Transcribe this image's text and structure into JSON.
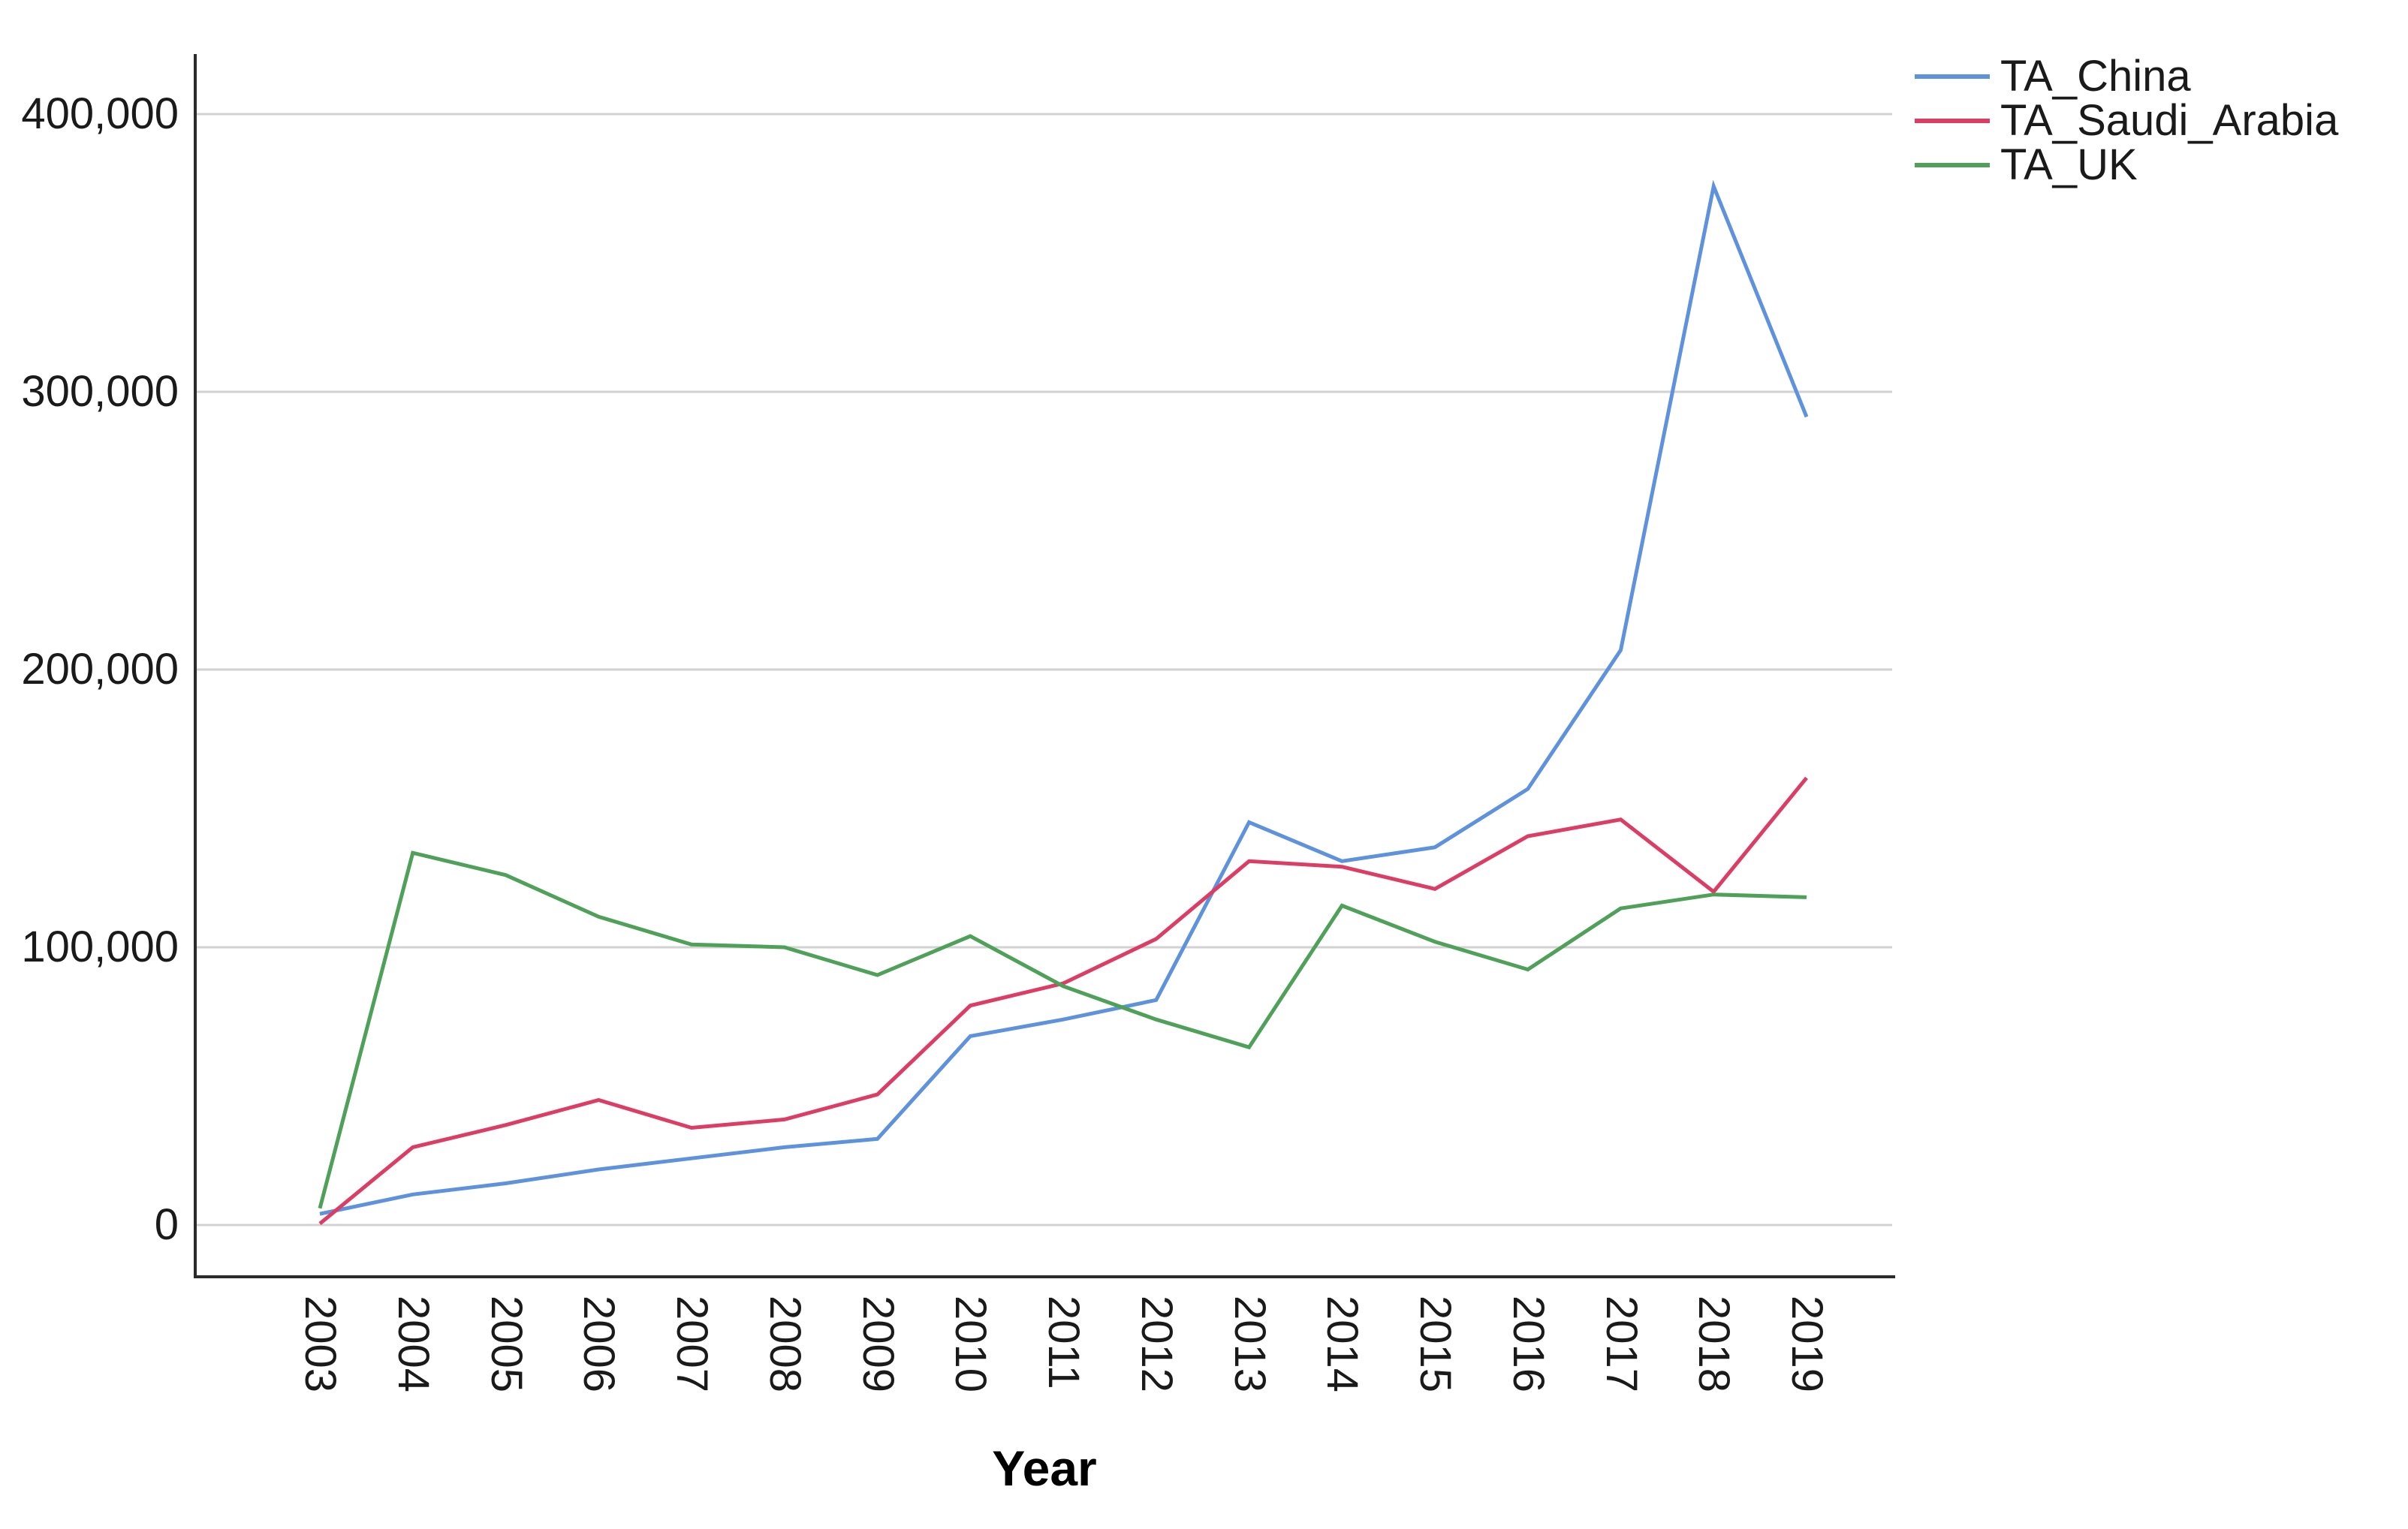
{
  "chart_data": {
    "type": "line",
    "title": "",
    "xlabel": "Year",
    "ylabel": "",
    "categories": [
      "2003",
      "2004",
      "2005",
      "2006",
      "2007",
      "2008",
      "2009",
      "2010",
      "2011",
      "2012",
      "2013",
      "2014",
      "2015",
      "2016",
      "2017",
      "2018",
      "2019"
    ],
    "y_tick_labels": [
      "0",
      "100,000",
      "200,000",
      "300,000",
      "400,000"
    ],
    "y_tick_values": [
      0,
      100000,
      200000,
      300000,
      400000
    ],
    "ylim": [
      0,
      400000
    ],
    "grid": "horizontal",
    "legend_position": "top-right",
    "series": [
      {
        "name": "TA_China",
        "color": "#5E92DC",
        "values": [
          4000,
          11000,
          15000,
          20000,
          24000,
          28000,
          31000,
          68000,
          74000,
          81000,
          145000,
          131000,
          136000,
          157000,
          207000,
          374000,
          291000
        ]
      },
      {
        "name": "TA_Saudi_Arabia",
        "color": "#DC3D64",
        "values": [
          500,
          28000,
          36000,
          45000,
          35000,
          38000,
          47000,
          79000,
          87000,
          103000,
          131000,
          129000,
          121000,
          140000,
          146000,
          120000,
          161000
        ]
      },
      {
        "name": "TA_UK",
        "color": "#4FA058",
        "values": [
          6000,
          134000,
          126000,
          111000,
          101000,
          100000,
          90000,
          104000,
          86000,
          74000,
          64000,
          115000,
          102000,
          92000,
          114000,
          119000,
          118000
        ]
      }
    ]
  },
  "colors": {
    "grid": "#D2D2D2",
    "axis": "#2b2b2b",
    "text": "#1a1a1a",
    "background": "#FFFFFF"
  }
}
